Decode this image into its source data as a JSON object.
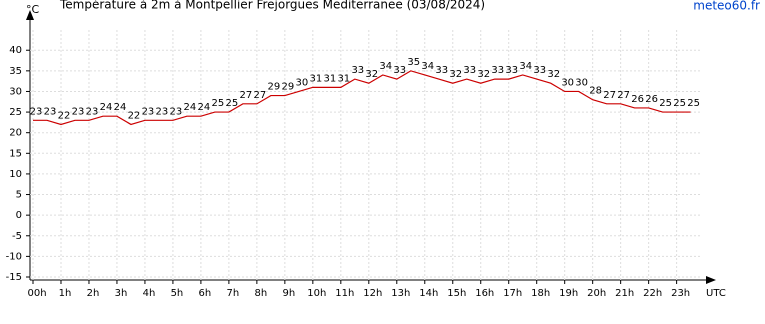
{
  "chart_data": {
    "type": "line",
    "title": "Température à 2m à Montpellier Frejorgues Mediterranee (03/08/2024)",
    "source": "meteo60.fr",
    "y_label": "°C",
    "x_label": "UTC",
    "x": [
      0,
      0.5,
      1,
      1.5,
      2,
      2.5,
      3,
      3.5,
      4,
      4.5,
      5,
      5.5,
      6,
      6.5,
      7,
      7.5,
      8,
      8.5,
      9,
      9.5,
      10,
      10.5,
      11,
      11.5,
      12,
      12.5,
      13,
      13.5,
      14,
      14.5,
      15,
      15.5,
      16,
      16.5,
      17,
      17.5,
      18,
      18.5,
      19,
      19.5,
      20,
      20.5,
      21,
      21.5,
      22,
      22.5,
      23,
      23.5
    ],
    "series": [
      {
        "name": "Température",
        "color": "#cc0000",
        "values": [
          23,
          23,
          22,
          23,
          23,
          24,
          24,
          22,
          23,
          23,
          23,
          24,
          24,
          25,
          25,
          27,
          27,
          29,
          29,
          30,
          31,
          31,
          31,
          33,
          32,
          34,
          33,
          35,
          34,
          33,
          32,
          33,
          32,
          33,
          33,
          34,
          33,
          32,
          30,
          30,
          28,
          27,
          27,
          26,
          26,
          25,
          25,
          25
        ]
      }
    ],
    "xlim": [
      0,
      24.3
    ],
    "xticks": [
      {
        "value": 0,
        "label": "00h"
      },
      {
        "value": 1,
        "label": "1h"
      },
      {
        "value": 2,
        "label": "2h"
      },
      {
        "value": 3,
        "label": "3h"
      },
      {
        "value": 4,
        "label": "4h"
      },
      {
        "value": 5,
        "label": "5h"
      },
      {
        "value": 6,
        "label": "6h"
      },
      {
        "value": 7,
        "label": "7h"
      },
      {
        "value": 8,
        "label": "8h"
      },
      {
        "value": 9,
        "label": "9h"
      },
      {
        "value": 10,
        "label": "10h"
      },
      {
        "value": 11,
        "label": "11h"
      },
      {
        "value": 12,
        "label": "12h"
      },
      {
        "value": 13,
        "label": "13h"
      },
      {
        "value": 14,
        "label": "14h"
      },
      {
        "value": 15,
        "label": "15h"
      },
      {
        "value": 16,
        "label": "16h"
      },
      {
        "value": 17,
        "label": "17h"
      },
      {
        "value": 18,
        "label": "18h"
      },
      {
        "value": 19,
        "label": "19h"
      },
      {
        "value": 20,
        "label": "20h"
      },
      {
        "value": 21,
        "label": "21h"
      },
      {
        "value": 22,
        "label": "22h"
      },
      {
        "value": 23,
        "label": "23h"
      }
    ],
    "ylim": [
      -15,
      50
    ],
    "yticks": [
      -15,
      -10,
      -5,
      0,
      5,
      10,
      15,
      20,
      25,
      30,
      35,
      40
    ],
    "grid": true
  }
}
